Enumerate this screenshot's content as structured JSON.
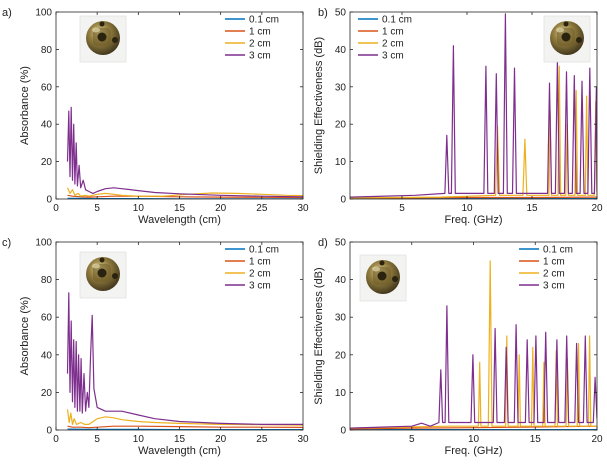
{
  "chart_data": [
    {
      "type": "line",
      "panel_label": "a)",
      "xlabel": "Wavelength (cm)",
      "ylabel": "Absorbance (%)",
      "xlim": [
        0,
        30
      ],
      "ylim": [
        0,
        100
      ],
      "xticks": [
        0,
        5,
        10,
        15,
        20,
        25,
        30
      ],
      "yticks": [
        0,
        20,
        40,
        60,
        80,
        100
      ],
      "legend_position": "top-right",
      "inset_image": "brass-cube-icon",
      "series": [
        {
          "name": "0.1 cm",
          "color": "#0072BD",
          "x": [
            1.4,
            3,
            5,
            10,
            15,
            20,
            25,
            30
          ],
          "y": [
            0.4,
            0.3,
            0.2,
            0.2,
            0.1,
            0.1,
            0.1,
            0.1
          ]
        },
        {
          "name": "1 cm",
          "color": "#D95319",
          "x": [
            1.4,
            2,
            3,
            4,
            5,
            7,
            10,
            15,
            20,
            25,
            30
          ],
          "y": [
            2,
            1.5,
            1.2,
            1,
            1.2,
            1.5,
            1.5,
            1.2,
            1,
            0.9,
            0.8
          ]
        },
        {
          "name": "2 cm",
          "color": "#EDB120",
          "x": [
            1.4,
            1.7,
            2,
            2.3,
            2.7,
            3,
            3.5,
            4,
            5,
            6,
            8,
            10,
            13,
            16,
            19,
            22,
            25,
            28,
            30
          ],
          "y": [
            6,
            3,
            5,
            2,
            3,
            1.5,
            2,
            1.5,
            2.5,
            3,
            2,
            1.5,
            1.5,
            2.5,
            3.2,
            3,
            2.5,
            2,
            1.8
          ]
        },
        {
          "name": "3 cm",
          "color": "#7E2F8E",
          "x": [
            1.4,
            1.55,
            1.7,
            1.85,
            2.0,
            2.15,
            2.3,
            2.45,
            2.6,
            2.8,
            3.0,
            3.3,
            3.6,
            4.0,
            4.5,
            5.0,
            6.0,
            7.0,
            8.0,
            10,
            12,
            15,
            20,
            25,
            30
          ],
          "y": [
            20,
            47,
            12,
            49,
            10,
            40,
            8,
            30,
            7,
            18,
            6,
            10,
            5,
            4,
            3,
            4,
            5.5,
            6,
            5.5,
            4.5,
            3.5,
            2.8,
            2,
            1.5,
            1.2
          ]
        }
      ]
    },
    {
      "type": "line",
      "panel_label": "b)",
      "xlabel": "Freq. (GHz)",
      "ylabel": "Shielding Effectiveness (dB)",
      "xlim": [
        1,
        20
      ],
      "ylim": [
        0,
        50
      ],
      "xticks": [
        5,
        10,
        15,
        20
      ],
      "yticks": [
        0,
        10,
        20,
        30,
        40,
        50
      ],
      "legend_position": "top-left",
      "inset_image": "brass-cube-icon",
      "series": [
        {
          "name": "0.1 cm",
          "color": "#0072BD",
          "x": [
            1,
            5,
            10,
            15,
            20
          ],
          "y": [
            0.1,
            0.1,
            0.1,
            0.1,
            0.1
          ]
        },
        {
          "name": "1 cm",
          "color": "#D95319",
          "x": [
            1,
            5,
            10,
            15,
            20
          ],
          "y": [
            0.3,
            0.3,
            0.4,
            0.4,
            0.5
          ]
        },
        {
          "name": "2 cm",
          "color": "#EDB120",
          "x": [
            1,
            8,
            12.2,
            12.35,
            12.5,
            14.3,
            14.45,
            14.6,
            16.3,
            16.4,
            16.5,
            17.0,
            17.1,
            17.2,
            17.6,
            17.7,
            17.8,
            18.3,
            18.4,
            18.5,
            19.1,
            19.2,
            19.3,
            19.8,
            19.9,
            20
          ],
          "y": [
            0.3,
            0.5,
            1,
            19.5,
            1,
            1,
            16,
            1,
            1,
            23.5,
            1,
            1,
            35.5,
            1,
            1,
            20,
            1,
            1,
            29,
            1,
            1,
            27.5,
            1,
            1,
            26,
            1
          ]
        },
        {
          "name": "3 cm",
          "color": "#7E2F8E",
          "x": [
            1,
            6,
            8.3,
            8.45,
            8.6,
            8.8,
            8.95,
            9.1,
            11.3,
            11.45,
            11.6,
            12.1,
            12.25,
            12.4,
            12.8,
            12.95,
            13.1,
            13.5,
            13.65,
            13.8,
            16.2,
            16.35,
            16.5,
            16.8,
            16.95,
            17.1,
            17.5,
            17.65,
            17.8,
            18.1,
            18.25,
            18.4,
            18.7,
            18.85,
            19.0,
            19.3,
            19.45,
            19.6,
            19.8,
            19.95,
            20
          ],
          "y": [
            0.5,
            1,
            1.5,
            17,
            1.5,
            1.5,
            41,
            1.5,
            1.5,
            35.5,
            1.5,
            1.5,
            33.5,
            1.5,
            1.5,
            49.5,
            1.5,
            1.5,
            35,
            1.5,
            1.5,
            31,
            1.5,
            1.5,
            37.5,
            1.5,
            1.5,
            34,
            1.5,
            1.5,
            33,
            1.5,
            1.5,
            31.5,
            1.5,
            1.5,
            35,
            1.5,
            1.5,
            30,
            2
          ]
        }
      ]
    },
    {
      "type": "line",
      "panel_label": "c)",
      "xlabel": "Wavelength (cm)",
      "ylabel": "Absorbance (%)",
      "xlim": [
        0,
        30
      ],
      "ylim": [
        0,
        100
      ],
      "xticks": [
        0,
        5,
        10,
        15,
        20,
        25,
        30
      ],
      "yticks": [
        0,
        20,
        40,
        60,
        80,
        100
      ],
      "legend_position": "top-right",
      "inset_image": "brass-cube-icon",
      "series": [
        {
          "name": "0.1 cm",
          "color": "#0072BD",
          "x": [
            1.4,
            5,
            10,
            15,
            20,
            25,
            30
          ],
          "y": [
            0.5,
            0.3,
            0.3,
            0.2,
            0.2,
            0.2,
            0.2
          ]
        },
        {
          "name": "1 cm",
          "color": "#D95319",
          "x": [
            1.4,
            2,
            3,
            4,
            5,
            7,
            10,
            15,
            20,
            25,
            30
          ],
          "y": [
            2,
            1.5,
            1.5,
            1.2,
            1.5,
            2,
            2,
            1.8,
            1.5,
            1.5,
            1.4
          ]
        },
        {
          "name": "2 cm",
          "color": "#EDB120",
          "x": [
            1.4,
            1.6,
            1.8,
            2.0,
            2.2,
            2.5,
            3,
            3.5,
            4,
            5,
            6,
            7,
            8,
            10,
            12,
            15,
            20,
            25,
            30
          ],
          "y": [
            11,
            4,
            9,
            3,
            6,
            3,
            4,
            3,
            3,
            6,
            7,
            6.5,
            5.5,
            4.5,
            4,
            3.5,
            3,
            2.8,
            2.6
          ]
        },
        {
          "name": "3 cm",
          "color": "#7E2F8E",
          "x": [
            1.4,
            1.55,
            1.7,
            1.85,
            2.0,
            2.15,
            2.3,
            2.45,
            2.6,
            2.75,
            2.9,
            3.05,
            3.2,
            3.4,
            3.6,
            3.8,
            4.0,
            4.2,
            4.4,
            4.6,
            5.0,
            5.5,
            6,
            7,
            8,
            10,
            12,
            15,
            20,
            25,
            30
          ],
          "y": [
            30,
            73,
            20,
            58,
            15,
            48,
            12,
            47,
            10,
            40,
            10,
            38,
            9,
            30,
            10,
            20,
            12,
            40,
            61,
            22,
            12,
            11,
            10,
            10,
            10,
            8,
            6,
            4.5,
            3.5,
            3,
            3
          ]
        }
      ]
    },
    {
      "type": "line",
      "panel_label": "d)",
      "xlabel": "Freq. (GHz)",
      "ylabel": "Shielding Effectiveness (dB)",
      "xlim": [
        0,
        20
      ],
      "ylim": [
        0,
        50
      ],
      "xticks": [
        5,
        10,
        15,
        20
      ],
      "yticks": [
        0,
        10,
        20,
        30,
        40,
        50
      ],
      "legend_position": "top-right",
      "inset_image": "brass-cube-icon",
      "series": [
        {
          "name": "0.1 cm",
          "color": "#0072BD",
          "x": [
            0,
            5,
            10,
            15,
            20
          ],
          "y": [
            0.1,
            0.1,
            0.1,
            0.1,
            0.1
          ]
        },
        {
          "name": "1 cm",
          "color": "#D95319",
          "x": [
            0,
            5,
            10,
            15,
            20
          ],
          "y": [
            0.3,
            0.5,
            0.6,
            0.8,
            1
          ]
        },
        {
          "name": "2 cm",
          "color": "#EDB120",
          "x": [
            0,
            8,
            10.4,
            10.5,
            10.6,
            11.2,
            11.35,
            11.5,
            12.6,
            12.7,
            12.8,
            13.6,
            13.7,
            13.8,
            14.7,
            14.8,
            14.9,
            15.6,
            15.7,
            15.8,
            16.6,
            16.7,
            16.8,
            17.5,
            17.6,
            17.7,
            18.4,
            18.5,
            18.6,
            19.3,
            19.4,
            19.5,
            20
          ],
          "y": [
            0.5,
            1,
            1,
            18,
            1,
            1,
            45,
            1,
            1,
            25,
            1,
            1,
            20,
            1,
            1,
            22,
            1,
            1,
            18,
            1,
            1,
            21,
            1,
            1,
            19,
            1,
            1,
            23,
            1,
            1,
            25,
            1,
            1
          ]
        },
        {
          "name": "3 cm",
          "color": "#7E2F8E",
          "x": [
            0,
            5,
            5.8,
            6.5,
            7.2,
            7.35,
            7.5,
            7.7,
            7.85,
            8.0,
            9.8,
            9.95,
            10.1,
            11.6,
            11.75,
            11.9,
            12.5,
            12.65,
            12.8,
            13.3,
            13.45,
            13.6,
            14.2,
            14.35,
            14.5,
            14.9,
            15.05,
            15.2,
            15.7,
            15.85,
            16.0,
            16.6,
            16.75,
            16.9,
            17.4,
            17.55,
            17.7,
            18.2,
            18.35,
            18.5,
            18.9,
            19.05,
            19.2,
            19.7,
            19.85,
            20
          ],
          "y": [
            0.5,
            1,
            1.8,
            1,
            2,
            16,
            2,
            2,
            33,
            2,
            2,
            20,
            2,
            2,
            27,
            2,
            2,
            22,
            2,
            2,
            28,
            2,
            2,
            24,
            2,
            2,
            25,
            2,
            2,
            26,
            2,
            2,
            24,
            2,
            2,
            25,
            2,
            2,
            23,
            2,
            2,
            25,
            2,
            2,
            14,
            3
          ]
        }
      ]
    }
  ]
}
